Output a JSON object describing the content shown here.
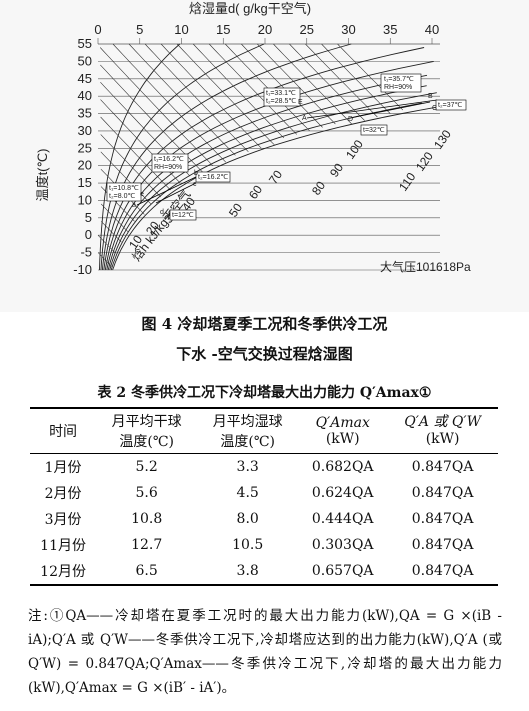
{
  "chart": {
    "top_axis_title": "焓湿量d( g/kg干空气)",
    "top_ticks": [
      "0",
      "5",
      "10",
      "15",
      "20",
      "25",
      "30",
      "35",
      "40"
    ],
    "left_axis_title": "温度t(℃)",
    "left_ticks": [
      "55",
      "50",
      "45",
      "40",
      "35",
      "30",
      "25",
      "20",
      "15",
      "10",
      "5",
      "0",
      "-5",
      "-10"
    ],
    "enthalpy_labels": [
      "10",
      "20",
      "30",
      "40",
      "50",
      "60",
      "70",
      "80",
      "90",
      "100",
      "110",
      "120",
      "130"
    ],
    "enthalpy_unit": "焓h kJ/kg干空气",
    "pressure_label": "大气压101618Pa",
    "point_labels": {
      "A": "A",
      "B": "B",
      "C": "C",
      "D": "D",
      "E": "E",
      "a": "a",
      "b": "b",
      "c": "c",
      "d": "d",
      "e": "e"
    },
    "box_labels": {
      "summer_A": [
        "t₁=33.1℃",
        "t₂=28.5℃"
      ],
      "summer_B": [
        "t₁=35.7℃",
        "RH=90%"
      ],
      "summer_C": "t₂=37℃",
      "summer_D": "t=32℃",
      "winter_A": [
        "t₁=10.8℃",
        "t₂=8.0℃"
      ],
      "winter_B": [
        "t₁=16.2℃",
        "RH=90%"
      ],
      "winter_C": "t₂=16.2℃",
      "winter_D": "t=12℃"
    }
  },
  "figure_caption": {
    "line1": "图 4   冷却塔夏季工况和冬季供冷工况",
    "line2": "下水 -空气交换过程焓湿图"
  },
  "table_caption": "表 2   冬季供冷工况下冷却塔最大出力能力 Q′Amax①",
  "table": {
    "headers_row1": [
      "时间",
      "月平均干球",
      "月平均湿球",
      "Q′Amax",
      "Q′A 或 Q′W"
    ],
    "headers_row2": [
      "",
      "温度(℃)",
      "温度(℃)",
      "(kW)",
      "(kW)"
    ],
    "rows": [
      [
        "1月份",
        "5.2",
        "3.3",
        "0.682QA",
        "0.847QA"
      ],
      [
        "2月份",
        "5.6",
        "4.5",
        "0.624QA",
        "0.847QA"
      ],
      [
        "3月份",
        "10.8",
        "8.0",
        "0.444QA",
        "0.847QA"
      ],
      [
        "11月份",
        "12.7",
        "10.5",
        "0.303QA",
        "0.847QA"
      ],
      [
        "12月份",
        "6.5",
        "3.8",
        "0.657QA",
        "0.847QA"
      ]
    ]
  },
  "note": "注:①QA——冷却塔在夏季工况时的最大出力能力(kW),QA = G ×(iB - iA);Q′A 或 Q′W——冬季供冷工况下,冷却塔应达到的出力能力(kW),Q′A (或 Q′W) = 0.847QA;Q′Amax——冬季供冷工况下,冷却塔的最大出力能力(kW),Q′Amax = G ×(iB′ - iA′)。"
}
